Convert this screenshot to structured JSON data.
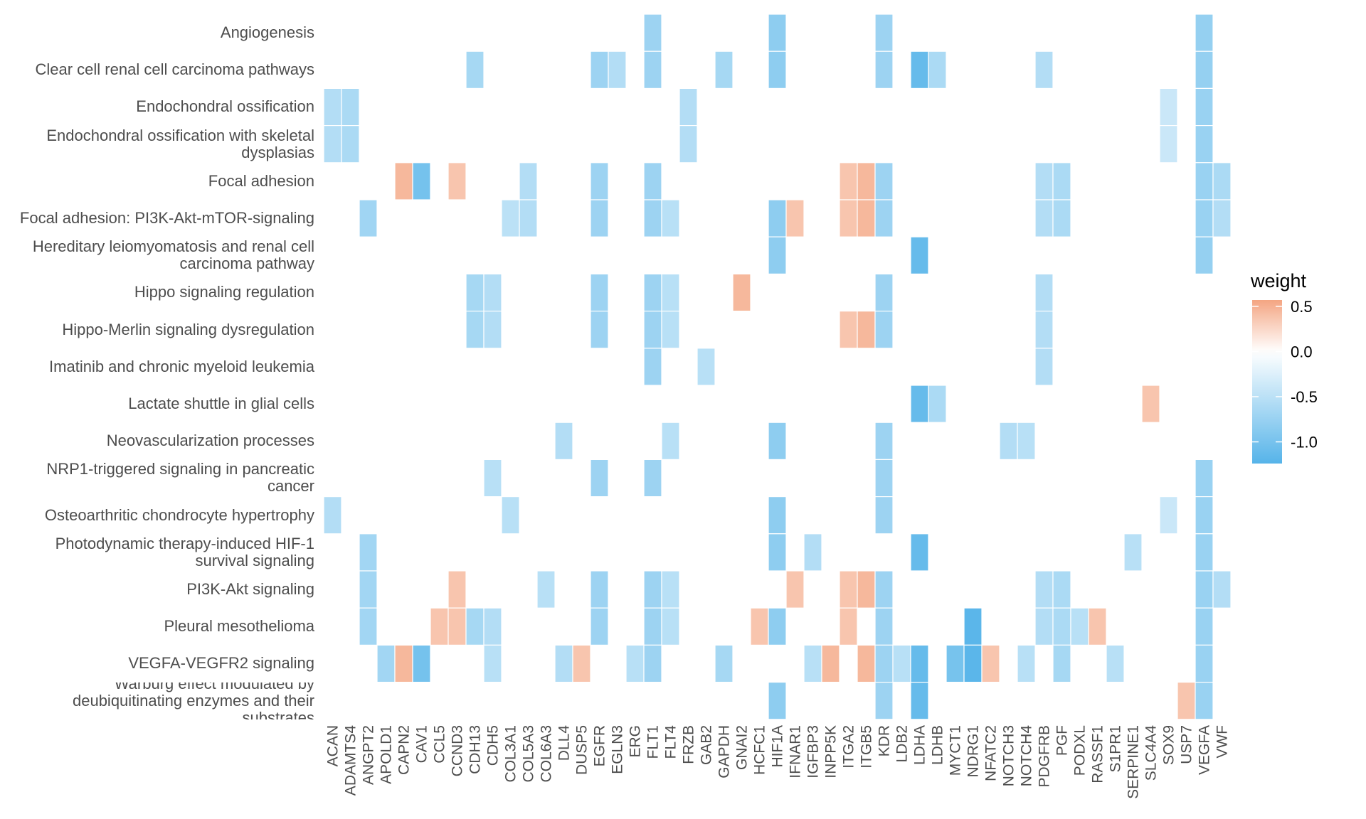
{
  "chart_data": {
    "type": "heatmap",
    "title": "",
    "xlabel": "",
    "ylabel": "",
    "legend": {
      "title": "weight",
      "position": "right",
      "ticks": [
        0.5,
        0.0,
        -0.5,
        -1.0
      ],
      "tick_labels": [
        "0.5",
        "0.0",
        "-0.5",
        "-1.0"
      ],
      "range": [
        -1.24,
        0.57
      ]
    },
    "colors": {
      "low": "#56B4E9",
      "mid": "#FFFFFF",
      "high": "#F4A582",
      "missing": "#FFFFFF"
    },
    "grid": false,
    "x": [
      "ACAN",
      "ADAMTS4",
      "ANGPT2",
      "APOLD1",
      "CAPN2",
      "CAV1",
      "CCL5",
      "CCND3",
      "CDH13",
      "CDH5",
      "COL3A1",
      "COL5A3",
      "COL6A3",
      "DLL4",
      "DUSP5",
      "EGFR",
      "EGLN3",
      "ERG",
      "FLT1",
      "FLT4",
      "FRZB",
      "GAB2",
      "GAPDH",
      "GNAI2",
      "HCFC1",
      "HIF1A",
      "IFNAR1",
      "IGFBP3",
      "INPP5K",
      "ITGA2",
      "ITGB5",
      "KDR",
      "LDB2",
      "LDHA",
      "LDHB",
      "MYCT1",
      "NDRG1",
      "NFATC2",
      "NOTCH3",
      "NOTCH4",
      "PDGFRB",
      "PGF",
      "PODXL",
      "RASSF1",
      "S1PR1",
      "SERPINE1",
      "SLC4A4",
      "SOX9",
      "USP7",
      "VEGFA",
      "VWF"
    ],
    "y": [
      "Angiogenesis",
      "Clear cell renal cell carcinoma pathways",
      "Endochondral ossification",
      "Endochondral ossification with skeletal dysplasias",
      "Focal adhesion",
      "Focal adhesion: PI3K-Akt-mTOR-signaling",
      "Hereditary leiomyomatosis and renal cell carcinoma pathway",
      "Hippo signaling regulation",
      "Hippo-Merlin signaling dysregulation",
      "Imatinib and chronic myeloid leukemia",
      "Lactate shuttle in glial cells",
      "Neovascularization processes",
      "NRP1-triggered signaling in pancreatic cancer",
      "Osteoarthritic chondrocyte hypertrophy",
      "Photodynamic therapy-induced HIF-1 survival signaling",
      "PI3K-Akt signaling",
      "Pleural mesothelioma",
      "VEGFA-VEGFR2 signaling",
      "Warburg effect modulated by deubiquitinating enzymes and their substrates"
    ],
    "rows": [
      {
        "FLT1": -0.72,
        "HIF1A": -0.83,
        "KDR": -0.72,
        "VEGFA": -0.78
      },
      {
        "CDH13": -0.65,
        "EGFR": -0.72,
        "EGLN3": -0.56,
        "FLT1": -0.72,
        "GAPDH": -0.65,
        "HIF1A": -0.83,
        "KDR": -0.72,
        "LDHA": -1.12,
        "LDHB": -0.62,
        "PDGFRB": -0.56,
        "VEGFA": -0.78
      },
      {
        "ACAN": -0.56,
        "ADAMTS4": -0.62,
        "FRZB": -0.56,
        "SOX9": -0.39,
        "VEGFA": -0.75
      },
      {
        "ACAN": -0.56,
        "ADAMTS4": -0.62,
        "FRZB": -0.56,
        "SOX9": -0.39,
        "VEGFA": -0.75
      },
      {
        "CAPN2": 0.45,
        "CAV1": -1.01,
        "CCND3": 0.37,
        "COL5A3": -0.56,
        "EGFR": -0.72,
        "FLT1": -0.72,
        "ITGA2": 0.37,
        "ITGB5": 0.45,
        "KDR": -0.72,
        "PDGFRB": -0.56,
        "PGF": -0.62,
        "VEGFA": -0.75,
        "VWF": -0.62
      },
      {
        "ANGPT2": -0.7,
        "COL3A1": -0.5,
        "COL5A3": -0.56,
        "EGFR": -0.72,
        "FLT1": -0.72,
        "FLT4": -0.52,
        "HIF1A": -0.83,
        "IFNAR1": 0.37,
        "ITGA2": 0.37,
        "ITGB5": 0.45,
        "KDR": -0.72,
        "PDGFRB": -0.56,
        "PGF": -0.62,
        "VEGFA": -0.75,
        "VWF": -0.56
      },
      {
        "HIF1A": -0.83,
        "LDHA": -1.12,
        "VEGFA": -0.78
      },
      {
        "CDH13": -0.65,
        "CDH5": -0.56,
        "EGFR": -0.72,
        "FLT1": -0.72,
        "FLT4": -0.52,
        "GNAI2": 0.45,
        "KDR": -0.72,
        "PDGFRB": -0.56
      },
      {
        "CDH13": -0.65,
        "CDH5": -0.56,
        "EGFR": -0.72,
        "FLT1": -0.72,
        "FLT4": -0.52,
        "ITGA2": 0.37,
        "ITGB5": 0.45,
        "KDR": -0.72,
        "PDGFRB": -0.56
      },
      {
        "FLT1": -0.72,
        "GAB2": -0.52,
        "PDGFRB": -0.56
      },
      {
        "LDHA": -1.12,
        "LDHB": -0.62,
        "SLC4A4": 0.37
      },
      {
        "DLL4": -0.56,
        "FLT4": -0.52,
        "HIF1A": -0.83,
        "KDR": -0.72,
        "NOTCH3": -0.56,
        "NOTCH4": -0.52
      },
      {
        "CDH5": -0.52,
        "EGFR": -0.72,
        "FLT1": -0.72,
        "KDR": -0.72,
        "VEGFA": -0.75
      },
      {
        "ACAN": -0.56,
        "COL3A1": -0.52,
        "HIF1A": -0.83,
        "KDR": -0.72,
        "SOX9": -0.39,
        "VEGFA": -0.75
      },
      {
        "ANGPT2": -0.68,
        "HIF1A": -0.83,
        "IGFBP3": -0.56,
        "LDHA": -1.12,
        "SERPINE1": -0.52,
        "VEGFA": -0.75
      },
      {
        "ANGPT2": -0.68,
        "CCND3": 0.37,
        "COL6A3": -0.52,
        "EGFR": -0.72,
        "FLT1": -0.72,
        "FLT4": -0.52,
        "IFNAR1": 0.37,
        "ITGA2": 0.37,
        "ITGB5": 0.45,
        "KDR": -0.72,
        "PDGFRB": -0.56,
        "PGF": -0.62,
        "VEGFA": -0.75,
        "VWF": -0.56
      },
      {
        "ANGPT2": -0.68,
        "CCL5": 0.37,
        "CCND3": 0.37,
        "CDH13": -0.65,
        "CDH5": -0.56,
        "EGFR": -0.72,
        "FLT1": -0.72,
        "FLT4": -0.52,
        "HCFC1": 0.37,
        "HIF1A": -0.83,
        "ITGA2": 0.37,
        "KDR": -0.72,
        "NDRG1": -1.2,
        "PDGFRB": -0.56,
        "PGF": -0.62,
        "PODXL": -0.52,
        "RASSF1": 0.37,
        "VEGFA": -0.75
      },
      {
        "APOLD1": -0.68,
        "CAPN2": 0.45,
        "CAV1": -1.01,
        "CDH5": -0.52,
        "DLL4": -0.56,
        "DUSP5": 0.37,
        "ERG": -0.52,
        "FLT1": -0.72,
        "GAPDH": -0.65,
        "IGFBP3": -0.52,
        "INPP5K": 0.45,
        "ITGB5": 0.45,
        "KDR": -0.72,
        "LDB2": -0.52,
        "LDHA": -1.12,
        "MYCT1": -1.0,
        "NDRG1": -1.2,
        "NFATC2": 0.37,
        "NOTCH4": -0.52,
        "PGF": -0.65,
        "S1PR1": -0.52,
        "VEGFA": -0.75
      },
      {
        "HIF1A": -0.83,
        "KDR": -0.72,
        "LDHA": -1.12,
        "USP7": 0.37,
        "VEGFA": -0.75
      }
    ]
  }
}
